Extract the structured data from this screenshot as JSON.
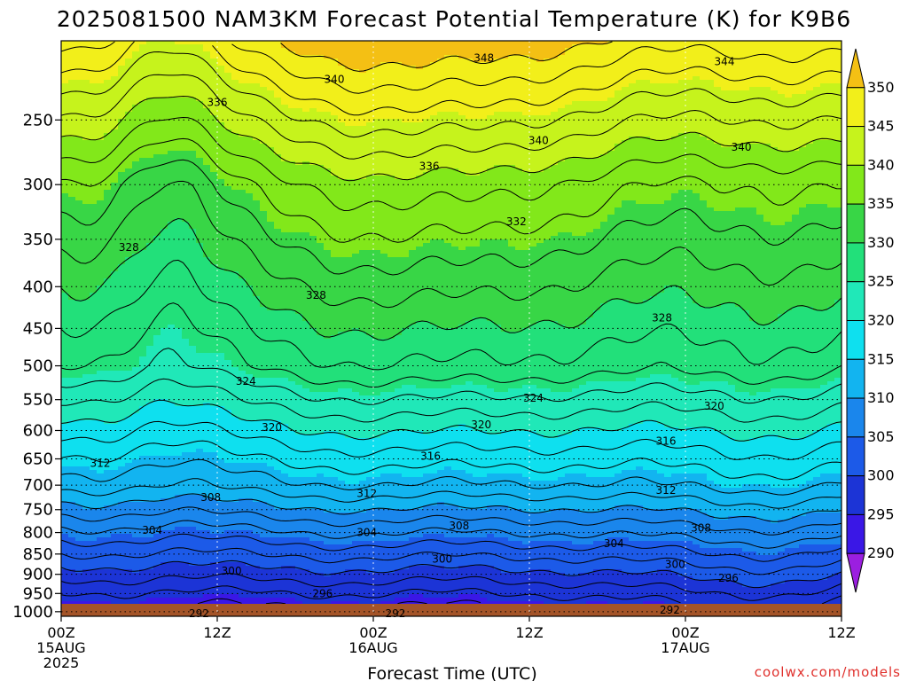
{
  "chart_data": {
    "type": "contour",
    "title": "2025081500 NAM3KM Forecast Potential Temperature (K) for K9B6",
    "xlabel": "Forecast Time (UTC)",
    "ylabel": "",
    "credit": "coolwx.com/models",
    "x_ticks": [
      {
        "hour": 0,
        "lines": [
          "00Z",
          "15AUG",
          "2025"
        ]
      },
      {
        "hour": 12,
        "lines": [
          "12Z"
        ]
      },
      {
        "hour": 24,
        "lines": [
          "00Z",
          "16AUG"
        ]
      },
      {
        "hour": 36,
        "lines": [
          "12Z"
        ]
      },
      {
        "hour": 48,
        "lines": [
          "00Z",
          "17AUG"
        ]
      },
      {
        "hour": 60,
        "lines": [
          "12Z"
        ]
      }
    ],
    "xlim": [
      0,
      60
    ],
    "y_ticks": [
      250,
      300,
      350,
      400,
      450,
      500,
      550,
      600,
      650,
      700,
      750,
      800,
      850,
      900,
      950,
      1000
    ],
    "ylim": [
      1013,
      200
    ],
    "y_scale": "log-pressure",
    "grid": true,
    "colorbar": {
      "levels": [
        290,
        295,
        300,
        305,
        310,
        315,
        320,
        325,
        330,
        335,
        340,
        345,
        350
      ],
      "colors": [
        "#9b1fe0",
        "#3a17e6",
        "#1c34d6",
        "#1c5ae8",
        "#1a86ec",
        "#12b4f0",
        "#0ee0ef",
        "#20e8b8",
        "#22e07a",
        "#38d646",
        "#82e81a",
        "#c6f31c",
        "#f2ef1a",
        "#f4c014"
      ]
    },
    "contour_labels": [
      {
        "value": "348",
        "hour": 32.5,
        "pressure": 210
      },
      {
        "value": "344",
        "hour": 51,
        "pressure": 212
      },
      {
        "value": "340",
        "hour": 21,
        "pressure": 223
      },
      {
        "value": "340",
        "hour": 36.7,
        "pressure": 265
      },
      {
        "value": "340",
        "hour": 52.3,
        "pressure": 270
      },
      {
        "value": "336",
        "hour": 12,
        "pressure": 238
      },
      {
        "value": "336",
        "hour": 28.3,
        "pressure": 285
      },
      {
        "value": "332",
        "hour": 35,
        "pressure": 333
      },
      {
        "value": "328",
        "hour": 5.2,
        "pressure": 358
      },
      {
        "value": "328",
        "hour": 19.6,
        "pressure": 410
      },
      {
        "value": "328",
        "hour": 46.2,
        "pressure": 437
      },
      {
        "value": "324",
        "hour": 14.2,
        "pressure": 522
      },
      {
        "value": "324",
        "hour": 36.3,
        "pressure": 548
      },
      {
        "value": "320",
        "hour": 16.2,
        "pressure": 595
      },
      {
        "value": "320",
        "hour": 32.3,
        "pressure": 590
      },
      {
        "value": "320",
        "hour": 50.2,
        "pressure": 560
      },
      {
        "value": "316",
        "hour": 28.4,
        "pressure": 645
      },
      {
        "value": "316",
        "hour": 46.5,
        "pressure": 618
      },
      {
        "value": "312",
        "hour": 3,
        "pressure": 658
      },
      {
        "value": "312",
        "hour": 23.5,
        "pressure": 717
      },
      {
        "value": "312",
        "hour": 46.5,
        "pressure": 710
      },
      {
        "value": "308",
        "hour": 11.5,
        "pressure": 725
      },
      {
        "value": "308",
        "hour": 30.6,
        "pressure": 785
      },
      {
        "value": "308",
        "hour": 49.2,
        "pressure": 790
      },
      {
        "value": "304",
        "hour": 7,
        "pressure": 795
      },
      {
        "value": "304",
        "hour": 23.5,
        "pressure": 800
      },
      {
        "value": "304",
        "hour": 42.5,
        "pressure": 825
      },
      {
        "value": "300",
        "hour": 29.3,
        "pressure": 862
      },
      {
        "value": "300",
        "hour": 13.1,
        "pressure": 892
      },
      {
        "value": "300",
        "hour": 47.2,
        "pressure": 875
      },
      {
        "value": "296",
        "hour": 20.1,
        "pressure": 950
      },
      {
        "value": "296",
        "hour": 51.3,
        "pressure": 910
      },
      {
        "value": "292",
        "hour": 10.6,
        "pressure": 1005
      },
      {
        "value": "292",
        "hour": 25.7,
        "pressure": 1005
      },
      {
        "value": "292",
        "hour": 46.8,
        "pressure": 995
      }
    ]
  }
}
